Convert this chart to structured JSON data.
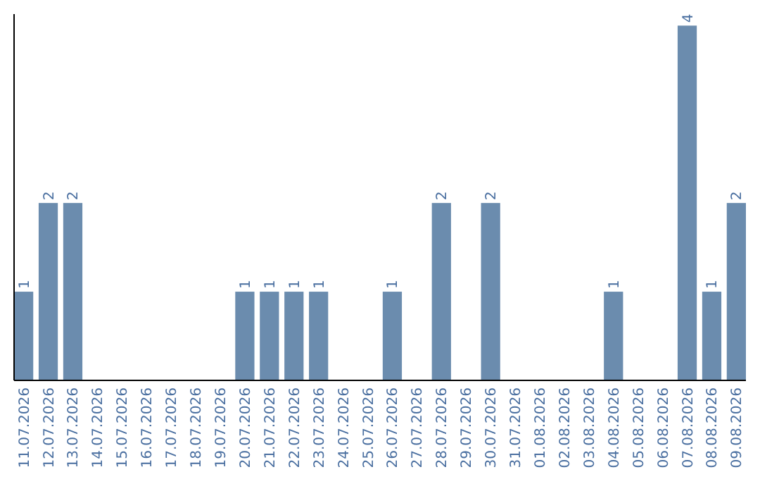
{
  "chart_data": {
    "type": "bar",
    "categories": [
      "11.07.2026",
      "12.07.2026",
      "13.07.2026",
      "14.07.2026",
      "15.07.2026",
      "16.07.2026",
      "17.07.2026",
      "18.07.2026",
      "19.07.2026",
      "20.07.2026",
      "21.07.2026",
      "22.07.2026",
      "23.07.2026",
      "24.07.2026",
      "25.07.2026",
      "26.07.2026",
      "27.07.2026",
      "28.07.2026",
      "29.07.2026",
      "30.07.2026",
      "31.07.2026",
      "01.08.2026",
      "02.08.2026",
      "03.08.2026",
      "04.08.2026",
      "05.08.2026",
      "06.08.2026",
      "07.08.2026",
      "08.08.2026",
      "09.08.2026"
    ],
    "values": [
      1,
      2,
      2,
      0,
      0,
      0,
      0,
      0,
      0,
      1,
      1,
      1,
      1,
      0,
      0,
      1,
      0,
      2,
      0,
      2,
      0,
      0,
      0,
      0,
      1,
      0,
      0,
      4,
      1,
      2
    ],
    "value_labels": [
      "1",
      "2",
      "2",
      null,
      null,
      null,
      null,
      null,
      null,
      "1",
      "1",
      "1",
      "1",
      null,
      null,
      "1",
      null,
      "2",
      null,
      "2",
      null,
      null,
      null,
      null,
      "1",
      null,
      null,
      "4",
      "1",
      "2"
    ],
    "color": "#6b8cae",
    "ylim": [
      0,
      4.13
    ],
    "tick_labels": "x"
  }
}
